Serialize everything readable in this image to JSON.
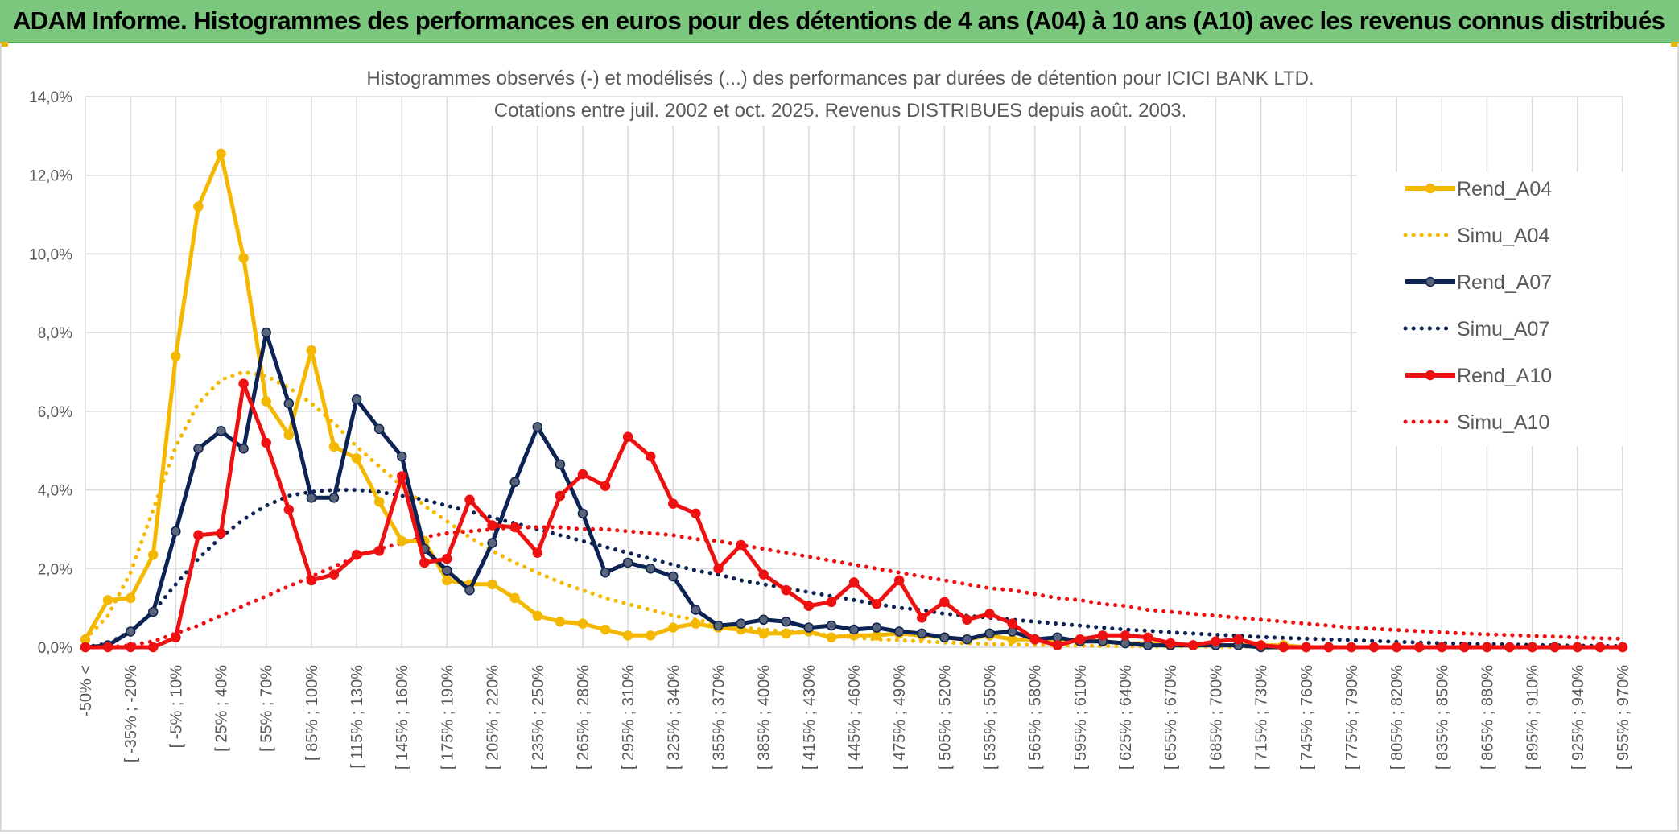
{
  "banner": {
    "title": "ADAM Informe. Histogrammes des performances en euros pour des détentions de 4 ans (A04) à 10 ans (A10) avec les revenus connus distribués"
  },
  "chart_data": {
    "type": "line",
    "title": "Histogrammes observés (-) et modélisés (...) des performances par durées de détention pour ICICI BANK LTD.",
    "subtitle": "Cotations entre juil. 2002 et oct. 2025. Revenus DISTRIBUES depuis août. 2003.",
    "xlabel": "",
    "ylabel": "",
    "ylim": [
      0,
      14
    ],
    "yticks": [
      "0,0%",
      "2,0%",
      "4,0%",
      "6,0%",
      "8,0%",
      "10,0%",
      "12,0%",
      "14,0%"
    ],
    "grid": true,
    "legend_position": "right",
    "x_labels": [
      "-50% <",
      "[ -35% ; -20%",
      "[ -5% ; 10%",
      "[ 25% ; 40%",
      "[ 55% ; 70%",
      "[ 85% ; 100%",
      "[ 115% ; 130%",
      "[ 145% ; 160%",
      "[ 175% ; 190%",
      "[ 205% ; 220%",
      "[ 235% ; 250%",
      "[ 265% ; 280%",
      "[ 295% ; 310%",
      "[ 325% ; 340%",
      "[ 355% ; 370%",
      "[ 385% ; 400%",
      "[ 415% ; 430%",
      "[ 445% ; 460%",
      "[ 475% ; 490%",
      "[ 505% ; 520%",
      "[ 535% ; 550%",
      "[ 565% ; 580%",
      "[ 595% ; 610%",
      "[ 625% ; 640%",
      "[ 655% ; 670%",
      "[ 685% ; 700%",
      "[ 715% ; 730%",
      "[ 745% ; 760%",
      "[ 775% ; 790%",
      "[ 805% ; 820%",
      "[ 835% ; 850%",
      "[ 865% ; 880%",
      "[ 895% ; 910%",
      "[ 925% ; 940%",
      "[ 955% ; 970%"
    ],
    "series": [
      {
        "name": "Rend_A04",
        "color": "#f5b800",
        "style": "solid",
        "values": [
          0.2,
          1.2,
          1.25,
          2.35,
          7.4,
          11.2,
          12.55,
          9.9,
          6.25,
          5.4,
          7.55,
          5.1,
          4.8,
          3.7,
          2.7,
          2.7,
          1.7,
          1.6,
          1.6,
          1.25,
          0.8,
          0.65,
          0.6,
          0.45,
          0.3,
          0.3,
          0.5,
          0.6,
          0.5,
          0.45,
          0.35,
          0.35,
          0.4,
          0.25,
          0.3,
          0.3,
          0.35,
          0.3,
          0.25,
          0.2,
          0.3,
          0.2,
          0.2,
          0.15,
          0.2,
          0.15,
          0.1,
          0.1,
          0.1,
          0.05,
          0.05,
          0.05,
          0.05,
          0.05,
          0,
          0,
          0,
          0,
          0,
          0,
          0,
          0,
          0,
          0,
          0,
          0,
          0,
          0,
          0
        ]
      },
      {
        "name": "Simu_A04",
        "color": "#f5b800",
        "style": "dotted",
        "values": [
          0.2,
          0.8,
          1.9,
          3.5,
          5.1,
          6.2,
          6.8,
          7,
          6.9,
          6.6,
          6.2,
          5.7,
          5.1,
          4.6,
          4.1,
          3.6,
          3.2,
          2.8,
          2.45,
          2.15,
          1.9,
          1.65,
          1.45,
          1.25,
          1.1,
          0.95,
          0.8,
          0.7,
          0.6,
          0.5,
          0.45,
          0.4,
          0.35,
          0.3,
          0.25,
          0.2,
          0.18,
          0.15,
          0.12,
          0.1,
          0.08,
          0.07,
          0.06,
          0.05,
          0.04,
          0.03,
          0.03,
          0.02,
          0.02,
          0.02,
          0.01,
          0.01,
          0.01,
          0.01,
          0,
          0,
          0,
          0,
          0,
          0,
          0,
          0,
          0,
          0,
          0,
          0,
          0,
          0,
          0
        ]
      },
      {
        "name": "Rend_A07",
        "color": "#0d2354",
        "style": "solid",
        "values": [
          0,
          0.05,
          0.4,
          0.9,
          2.95,
          5.05,
          5.5,
          5.05,
          8,
          6.2,
          3.8,
          3.8,
          6.3,
          5.55,
          4.85,
          2.5,
          1.95,
          1.45,
          2.65,
          4.2,
          5.6,
          4.65,
          3.4,
          1.9,
          2.15,
          2,
          1.8,
          0.95,
          0.55,
          0.6,
          0.7,
          0.65,
          0.5,
          0.55,
          0.45,
          0.5,
          0.4,
          0.35,
          0.25,
          0.2,
          0.35,
          0.4,
          0.2,
          0.25,
          0.15,
          0.15,
          0.1,
          0.05,
          0.05,
          0.05,
          0.05,
          0.05,
          0,
          0,
          0,
          0,
          0,
          0,
          0,
          0,
          0,
          0,
          0,
          0,
          0,
          0,
          0,
          0,
          0
        ]
      },
      {
        "name": "Simu_A07",
        "color": "#0d2354",
        "style": "dotted",
        "values": [
          0,
          0.1,
          0.4,
          0.9,
          1.6,
          2.25,
          2.8,
          3.25,
          3.6,
          3.85,
          3.95,
          4,
          4,
          3.95,
          3.85,
          3.75,
          3.6,
          3.45,
          3.3,
          3.15,
          3,
          2.85,
          2.7,
          2.55,
          2.4,
          2.25,
          2.1,
          1.95,
          1.85,
          1.7,
          1.6,
          1.5,
          1.4,
          1.3,
          1.2,
          1.1,
          1,
          0.95,
          0.85,
          0.8,
          0.75,
          0.7,
          0.65,
          0.6,
          0.55,
          0.5,
          0.45,
          0.42,
          0.38,
          0.35,
          0.32,
          0.29,
          0.26,
          0.24,
          0.22,
          0.2,
          0.18,
          0.16,
          0.14,
          0.12,
          0.1,
          0.09,
          0.08,
          0.07,
          0.06,
          0.05,
          0.04,
          0.03,
          0.03
        ]
      },
      {
        "name": "Rend_A10",
        "color": "#ee1111",
        "style": "solid",
        "values": [
          0,
          0,
          0,
          0,
          0.25,
          2.85,
          2.9,
          6.7,
          5.2,
          3.5,
          1.7,
          1.85,
          2.35,
          2.45,
          4.35,
          2.15,
          2.25,
          3.75,
          3.1,
          3.05,
          2.4,
          3.85,
          4.4,
          4.1,
          5.35,
          4.85,
          3.65,
          3.4,
          2,
          2.6,
          1.85,
          1.45,
          1.05,
          1.15,
          1.65,
          1.1,
          1.7,
          0.75,
          1.15,
          0.7,
          0.85,
          0.6,
          0.2,
          0.05,
          0.2,
          0.3,
          0.3,
          0.25,
          0.1,
          0.05,
          0.15,
          0.2,
          0.05,
          0,
          0,
          0,
          0,
          0,
          0,
          0,
          0,
          0,
          0,
          0,
          0,
          0,
          0,
          0,
          0
        ]
      },
      {
        "name": "Simu_A10",
        "color": "#ee1111",
        "style": "dotted",
        "values": [
          0,
          0,
          0.05,
          0.15,
          0.35,
          0.55,
          0.8,
          1.05,
          1.3,
          1.55,
          1.8,
          2.05,
          2.3,
          2.5,
          2.65,
          2.8,
          2.9,
          2.95,
          3,
          3.05,
          3.05,
          3.05,
          3,
          3,
          2.95,
          2.9,
          2.85,
          2.75,
          2.7,
          2.6,
          2.5,
          2.4,
          2.3,
          2.2,
          2.1,
          2,
          1.9,
          1.8,
          1.7,
          1.6,
          1.5,
          1.45,
          1.35,
          1.25,
          1.2,
          1.1,
          1.05,
          0.95,
          0.9,
          0.85,
          0.8,
          0.75,
          0.7,
          0.65,
          0.6,
          0.55,
          0.5,
          0.47,
          0.44,
          0.41,
          0.38,
          0.35,
          0.33,
          0.31,
          0.29,
          0.27,
          0.25,
          0.23,
          0.22
        ]
      }
    ]
  }
}
